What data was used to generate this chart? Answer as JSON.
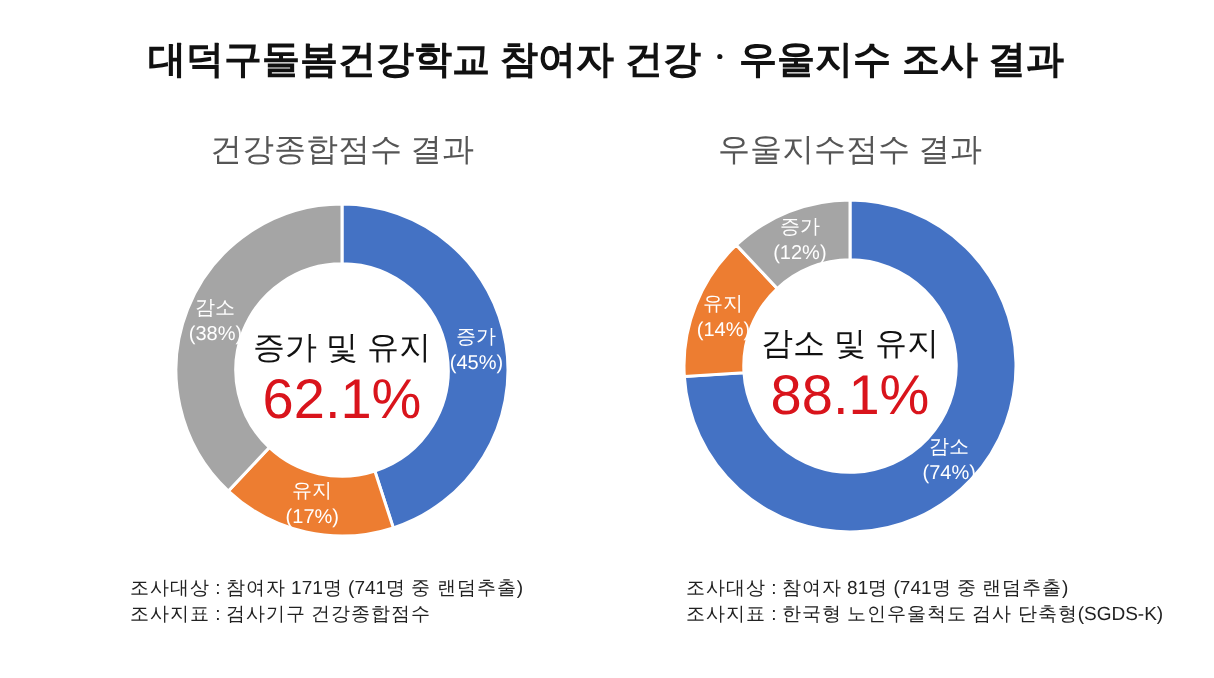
{
  "chart_data": [
    {
      "type": "other",
      "title": "대덕구돌봄건강학교 참여자 건강ㆍ우울지수 조사 결과"
    },
    {
      "type": "donut",
      "title": "건강종합점수 결과",
      "categories": [
        "증가",
        "유지",
        "감소"
      ],
      "values": [
        45,
        17,
        38
      ],
      "colors": [
        "#4472c4",
        "#ed7d31",
        "#a5a5a5"
      ],
      "value_labels": [
        "(45%)",
        "(17%)",
        "(38%)"
      ],
      "annotations": [
        "증가 및 유지",
        "62.1%",
        "조사대상 : 참여자 171명 (741명 중 랜덤추출)",
        "조사지표 : 검사기구 건강종합점수"
      ]
    },
    {
      "type": "donut",
      "title": "우울지수점수 결과",
      "categories": [
        "감소",
        "유지",
        "증가"
      ],
      "values": [
        74,
        14,
        12
      ],
      "colors": [
        "#4472c4",
        "#ed7d31",
        "#a5a5a5"
      ],
      "value_labels": [
        "(74%)",
        "(14%)",
        "(12%)"
      ],
      "annotations": [
        "감소 및 유지",
        "88.1%",
        "조사대상 : 참여자 81명 (741명 중 랜덤추출)",
        "조사지표 : 한국형 노인우울척도 검사 단축형(SGDS-K)"
      ]
    }
  ]
}
